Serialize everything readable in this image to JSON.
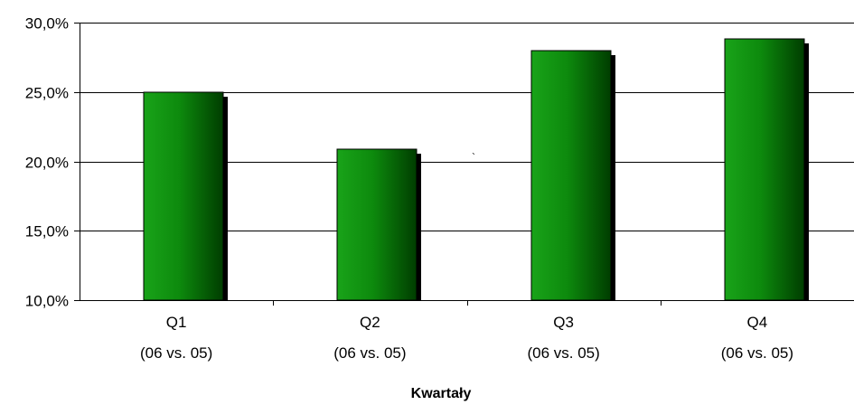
{
  "chart_data": {
    "type": "bar",
    "title": "",
    "xlabel": "Kwartały",
    "ylabel": "",
    "ylim": [
      10,
      30
    ],
    "yticks": [
      10,
      15,
      20,
      25,
      30
    ],
    "ytick_labels": [
      "10,0%",
      "15,0%",
      "20,0%",
      "25,0%",
      "30,0%"
    ],
    "grid": true,
    "legend": "none",
    "categories": [
      {
        "line1": "Q1",
        "line2": "(06 vs. 05)"
      },
      {
        "line1": "Q2",
        "line2": "(06 vs. 05)"
      },
      {
        "line1": "Q3",
        "line2": "(06 vs. 05)"
      },
      {
        "line1": "Q4",
        "line2": "(06 vs. 05)"
      }
    ],
    "values": [
      25.0,
      20.9,
      28.0,
      28.8
    ],
    "colors": {
      "bar_light": "#19a319",
      "bar_dark": "#003d00",
      "shadow": "#000000",
      "grid": "#000000"
    },
    "annotations": [
      "`"
    ]
  }
}
